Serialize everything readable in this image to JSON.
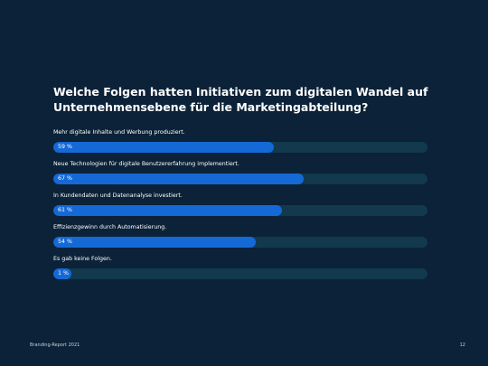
{
  "title": "Welche Folgen hatten Initiativen zum digitalen Wandel auf Unternehmensebene für die Marketingabteilung?",
  "colors": {
    "background": "#0b2238",
    "track": "#12394d",
    "bar": "#1569d6"
  },
  "chart_data": {
    "type": "bar",
    "orientation": "horizontal",
    "categories": [
      "Mehr digitale Inhalte und Werbung produziert.",
      "Neue Technologien für digitale Benutzererfahrung implementiert.",
      "In Kundendaten und Datenanalyse investiert.",
      "Effizienzgewinn durch Automatisierung.",
      "Es gab keine Folgen."
    ],
    "values": [
      59,
      67,
      61,
      54,
      1
    ],
    "value_labels": [
      "59 %",
      "67 %",
      "61 %",
      "54 %",
      "1 %"
    ],
    "xlim": [
      0,
      100
    ]
  },
  "footer": {
    "left": "Branding-Report 2021",
    "page_number": "12"
  }
}
